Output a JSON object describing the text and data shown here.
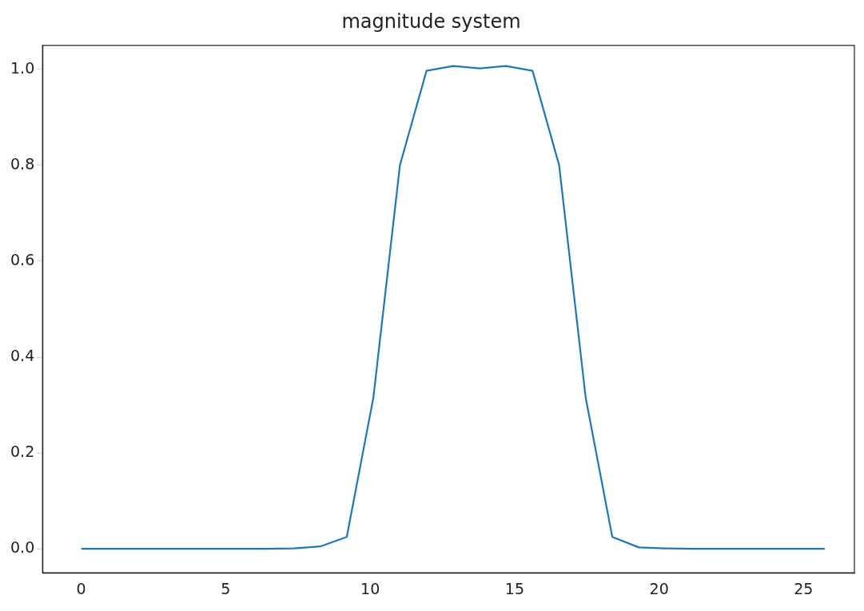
{
  "chart_data": {
    "type": "line",
    "title": "magnitude system",
    "x": [
      0,
      0.92,
      1.84,
      2.76,
      3.68,
      4.6,
      5.51,
      6.43,
      7.35,
      8.27,
      9.19,
      10.11,
      11.03,
      11.95,
      12.87,
      13.79,
      14.7,
      15.62,
      16.54,
      17.46,
      18.38,
      19.3,
      20.22,
      21.14,
      22.06,
      22.98,
      23.89,
      24.81,
      25.73
    ],
    "series": [
      {
        "color": "#1f77b4",
        "values": [
          0,
          0,
          0,
          0,
          0,
          0,
          0,
          0,
          0.001,
          0.005,
          0.025,
          0.315,
          0.8,
          0.997,
          1.007,
          1.002,
          1.007,
          0.997,
          0.8,
          0.315,
          0.025,
          0.003,
          0.001,
          0,
          0,
          0,
          0,
          0,
          0
        ]
      }
    ],
    "xlim": [
      -1.34,
      26.76
    ],
    "xticks": [
      0,
      5,
      10,
      15,
      20,
      25
    ],
    "ylim": [
      -0.05,
      1.05
    ],
    "yticks": [
      {
        "value": 0,
        "label": "0.0"
      },
      0.2,
      0.4,
      0.6,
      0.8,
      {
        "value": 1,
        "label": "1.0"
      }
    ],
    "grid": false,
    "legend": false,
    "marker": "none",
    "line_style": "solid"
  }
}
